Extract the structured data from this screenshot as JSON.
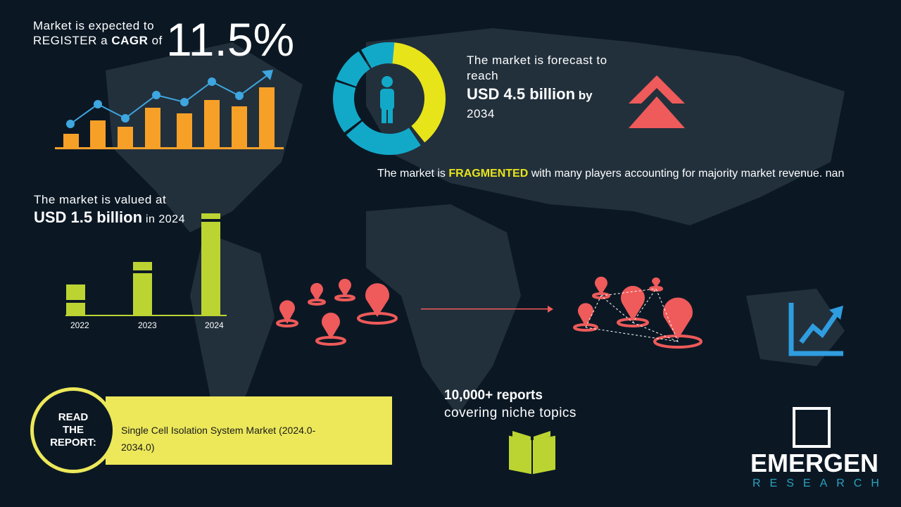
{
  "cagr": {
    "line1": "Market is expected to",
    "line2_pre": "REGISTER a ",
    "line2_bold": "CAGR",
    "line2_post": " of",
    "value": "11.5%"
  },
  "forecast": {
    "line1": "The market is forecast to",
    "line2": "reach",
    "value": "USD 4.5 billion",
    "by": " by",
    "year": "2034"
  },
  "fragmented": {
    "pre": "The market is ",
    "highlight": "FRAGMENTED",
    "post": " with many players accounting for majority market revenue. nan"
  },
  "valued": {
    "line1": "The market is valued at",
    "value": "USD 1.5 billion",
    "post": " in 2024"
  },
  "value_bars": {
    "categories": [
      "2022",
      "2023",
      "2024"
    ]
  },
  "reports": {
    "line1": "10,000+ reports",
    "line2": "covering niche topics"
  },
  "read_report": {
    "label_lines": [
      "READ",
      "THE",
      "REPORT:"
    ],
    "title": "Single Cell Isolation System Market (2024.0-2034.0)"
  },
  "logo": {
    "name": "EMERGEN",
    "sub": "RESEARCH"
  },
  "colors": {
    "background": "#0b1824",
    "orange": "#f7a028",
    "blue": "#3ea6e0",
    "yellow": "#e8e41a",
    "teal": "#12a9c9",
    "red": "#ef5a5a",
    "green": "#bcd432",
    "banner": "#ece85a"
  }
}
